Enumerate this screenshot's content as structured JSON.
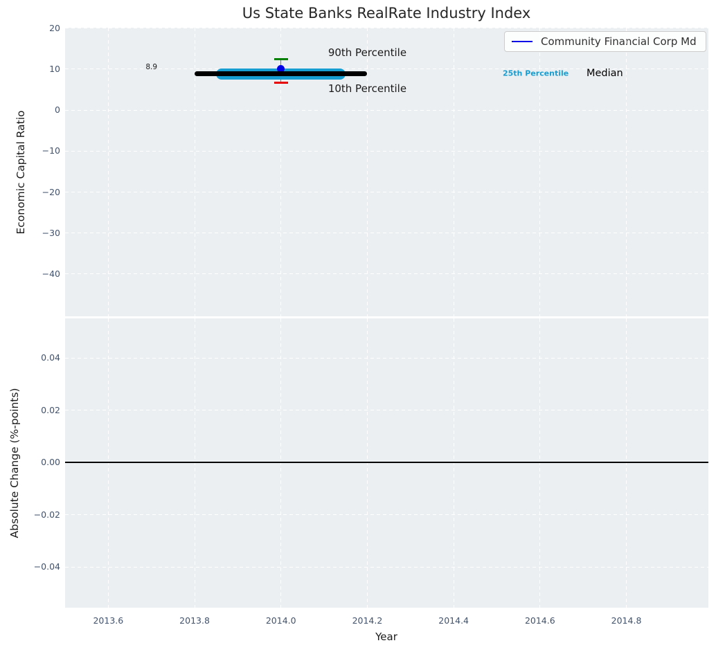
{
  "title": "Us State Banks RealRate Industry Index",
  "xlabel": "Year",
  "legend": {
    "label": "Community Financial Corp Md",
    "swatch_color": "#0000e6",
    "position": "upper right"
  },
  "colors": {
    "panel_background": "#eceff1",
    "grid": "#ffffff",
    "tick_label": "#42526b",
    "axis_label": "#1a1a1a",
    "title": "#262626",
    "median_line": "#000000",
    "p25_line": "#169ed3",
    "company_point": "#0000e6",
    "p90_cap": "#007f00",
    "p10_cap": "#e60000",
    "errorbar_line": "#777777",
    "zero_line": "#000000",
    "legend_border": "#cccccc"
  },
  "chart_data": [
    {
      "type": "line",
      "panel": "top",
      "title": "Us State Banks RealRate Industry Index",
      "ylabel": "Economic Capital Ratio",
      "xlim": [
        2013.5,
        2014.99
      ],
      "ylim": [
        -50.3,
        20.1
      ],
      "grid": true,
      "yticks": [
        20,
        10,
        0,
        -10,
        -20,
        -30,
        -40
      ],
      "ytick_labels": [
        "20",
        "10",
        "0",
        "−10",
        "−20",
        "−30",
        "−40"
      ],
      "xticks": [
        2013.6,
        2013.8,
        2014.0,
        2014.2,
        2014.4,
        2014.6,
        2014.8
      ],
      "show_xtick_labels": false,
      "series": [
        {
          "name": "25th Percentile",
          "style": "hline",
          "y": 8.85,
          "x_start": 2013.85,
          "x_end": 2014.15,
          "color": "#169ed3",
          "linewidth": 16
        },
        {
          "name": "90th-10th Percentile Range",
          "style": "errorbar",
          "x": 2014.0,
          "high": 12.5,
          "low": 6.7,
          "line_color": "#777777",
          "high_color": "#007f00",
          "low_color": "#e60000",
          "cap_width": 20
        },
        {
          "name": "Community Financial Corp Md",
          "style": "point",
          "x": 2014.0,
          "y": 10.1,
          "color": "#0000e6",
          "size": 11
        },
        {
          "name": "Median",
          "style": "hline",
          "y": 8.9,
          "x_start": 2013.8,
          "x_end": 2014.2,
          "color": "#000000",
          "linewidth": 7,
          "value_label": "8.9"
        }
      ],
      "annotations": [
        {
          "text": "8.9",
          "x": 2013.7,
          "y": 10.5,
          "color": "#1a1a1a",
          "font_size": 10.5,
          "bold": false
        },
        {
          "text": "90th Percentile",
          "x": 2014.2,
          "y": 14.1,
          "color": "#1a1a1a",
          "font_size": 15,
          "bold": false
        },
        {
          "text": "10th Percentile",
          "x": 2014.2,
          "y": 5.3,
          "color": "#1a1a1a",
          "font_size": 15,
          "bold": false
        },
        {
          "text": "25th Percentile",
          "x": 2014.59,
          "y": 8.9,
          "color": "#169ed3",
          "font_size": 11,
          "bold": true
        },
        {
          "text": "Median",
          "x": 2014.75,
          "y": 9.0,
          "color": "#000000",
          "font_size": 14.5,
          "bold": false
        }
      ]
    },
    {
      "type": "line",
      "panel": "bottom",
      "ylabel": "Absolute Change (%-points)",
      "xlabel": "Year",
      "xlim": [
        2013.5,
        2014.99
      ],
      "ylim": [
        -0.0556,
        0.0551
      ],
      "grid": true,
      "yticks": [
        0.04,
        0.02,
        0.0,
        -0.02,
        -0.04
      ],
      "ytick_labels": [
        "0.04",
        "0.02",
        "0.00",
        "−0.02",
        "−0.04"
      ],
      "xticks": [
        2013.6,
        2013.8,
        2014.0,
        2014.2,
        2014.4,
        2014.6,
        2014.8
      ],
      "xtick_labels": [
        "2013.6",
        "2013.8",
        "2014.0",
        "2014.2",
        "2014.4",
        "2014.6",
        "2014.8"
      ],
      "show_xtick_labels": true,
      "zero_line_y": 0.0
    }
  ]
}
